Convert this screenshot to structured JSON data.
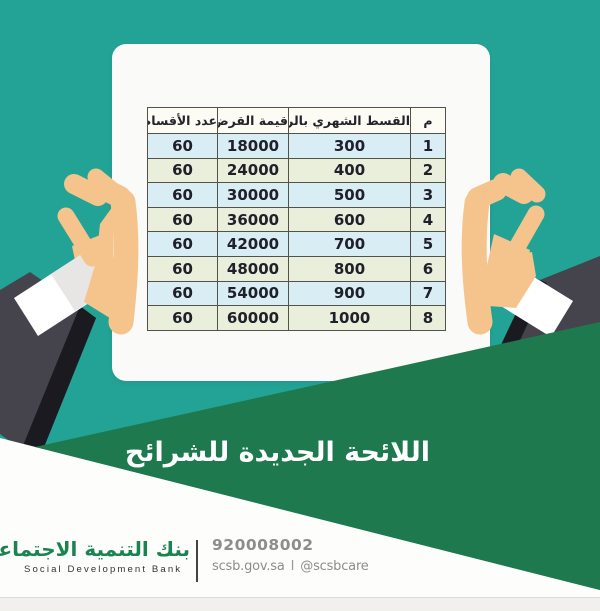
{
  "poster": {
    "title": "اللائحة الجديدة للشرائح",
    "table": {
      "headers": [
        "م",
        "القسط الشهري بالريال",
        "قيمة القرض",
        "عدد الأقساط"
      ],
      "rows": [
        [
          "1",
          "300",
          "18000",
          "60"
        ],
        [
          "2",
          "400",
          "24000",
          "60"
        ],
        [
          "3",
          "500",
          "30000",
          "60"
        ],
        [
          "4",
          "600",
          "36000",
          "60"
        ],
        [
          "5",
          "700",
          "42000",
          "60"
        ],
        [
          "6",
          "800",
          "48000",
          "60"
        ],
        [
          "7",
          "900",
          "54000",
          "60"
        ],
        [
          "8",
          "1000",
          "60000",
          "60"
        ]
      ]
    },
    "footer": {
      "logo_arabic": "بنك التنمية الاجتماعية",
      "logo_english": "Social Development Bank",
      "phone": "920008002",
      "website": "scsb.gov.sa",
      "separator": "I",
      "social_handle": "@scsbcare"
    },
    "colors": {
      "background_teal": "#23a296",
      "banner_green": "#1e7a4e",
      "brand_green": "#1a8451",
      "row_blue": "#d9edf5",
      "row_green": "#e9efda",
      "suit_gray": "#45444d",
      "suit_black": "#1b1a20",
      "skin": "#f5c48c",
      "footer_text_gray": "#8d8d8d"
    }
  }
}
